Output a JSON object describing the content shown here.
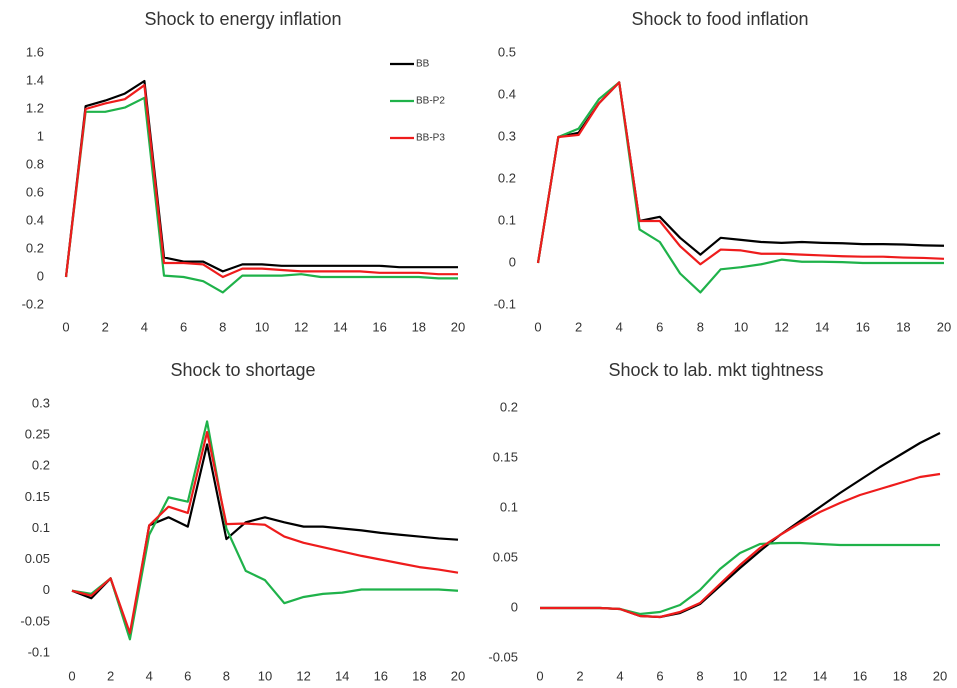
{
  "chart_data": [
    {
      "type": "line",
      "title": "Shock to energy inflation",
      "legend": "upper right",
      "x": [
        0,
        1,
        2,
        3,
        4,
        5,
        6,
        7,
        8,
        9,
        10,
        11,
        12,
        13,
        14,
        15,
        16,
        17,
        18,
        19,
        20
      ],
      "xlim": [
        0,
        20
      ],
      "xticks": [
        0,
        2,
        4,
        6,
        8,
        10,
        12,
        14,
        16,
        18,
        20
      ],
      "ylim": [
        -0.2,
        1.6
      ],
      "yticks": [
        -0.2,
        0,
        0.2,
        0.4,
        0.6,
        0.8,
        1,
        1.2,
        1.4,
        1.6
      ],
      "series": [
        {
          "name": "BB",
          "color": "#000000",
          "values": [
            0,
            1.22,
            1.26,
            1.31,
            1.4,
            0.14,
            0.11,
            0.11,
            0.04,
            0.09,
            0.09,
            0.08,
            0.08,
            0.08,
            0.08,
            0.08,
            0.08,
            0.07,
            0.07,
            0.07,
            0.07
          ]
        },
        {
          "name": "BB-P2",
          "color": "#1fb24a",
          "values": [
            0,
            1.18,
            1.18,
            1.21,
            1.28,
            0.01,
            0,
            -0.03,
            -0.11,
            0.01,
            0.01,
            0.01,
            0.02,
            0,
            0,
            0,
            0,
            0,
            0,
            -0.01,
            -0.01
          ]
        },
        {
          "name": "BB-P3",
          "color": "#ee1c1c",
          "values": [
            0,
            1.2,
            1.24,
            1.27,
            1.37,
            0.1,
            0.1,
            0.09,
            0,
            0.06,
            0.06,
            0.05,
            0.04,
            0.04,
            0.04,
            0.04,
            0.03,
            0.03,
            0.03,
            0.02,
            0.02
          ]
        }
      ]
    },
    {
      "type": "line",
      "title": "Shock to food inflation",
      "x": [
        0,
        1,
        2,
        3,
        4,
        5,
        6,
        7,
        8,
        9,
        10,
        11,
        12,
        13,
        14,
        15,
        16,
        17,
        18,
        19,
        20
      ],
      "xlim": [
        0,
        20
      ],
      "xticks": [
        0,
        2,
        4,
        6,
        8,
        10,
        12,
        14,
        16,
        18,
        20
      ],
      "ylim": [
        -0.1,
        0.5
      ],
      "yticks": [
        -0.1,
        0,
        0.1,
        0.2,
        0.3,
        0.4,
        0.5
      ],
      "series": [
        {
          "color": "#000000",
          "values": [
            0,
            0.3,
            0.31,
            0.38,
            0.43,
            0.1,
            0.11,
            0.06,
            0.02,
            0.06,
            0.055,
            0.05,
            0.048,
            0.05,
            0.048,
            0.047,
            0.045,
            0.045,
            0.044,
            0.042,
            0.041
          ]
        },
        {
          "color": "#1fb24a",
          "values": [
            0,
            0.3,
            0.32,
            0.39,
            0.43,
            0.08,
            0.05,
            -0.025,
            -0.07,
            -0.015,
            -0.01,
            -0.003,
            0.008,
            0.003,
            0.003,
            0.002,
            0,
            0,
            0,
            0,
            0
          ]
        },
        {
          "color": "#ee1c1c",
          "values": [
            0,
            0.3,
            0.305,
            0.38,
            0.43,
            0.1,
            0.1,
            0.04,
            -0.003,
            0.032,
            0.03,
            0.022,
            0.022,
            0.02,
            0.018,
            0.016,
            0.015,
            0.015,
            0.013,
            0.012,
            0.01
          ]
        }
      ]
    },
    {
      "type": "line",
      "title": "Shock to shortage",
      "x": [
        0,
        1,
        2,
        3,
        4,
        5,
        6,
        7,
        8,
        9,
        10,
        11,
        12,
        13,
        14,
        15,
        16,
        17,
        18,
        19,
        20
      ],
      "xlim": [
        0,
        20
      ],
      "xticks": [
        0,
        2,
        4,
        6,
        8,
        10,
        12,
        14,
        16,
        18,
        20
      ],
      "ylim": [
        -0.1,
        0.3
      ],
      "yticks": [
        -0.1,
        -0.05,
        0,
        0.05,
        0.1,
        0.15,
        0.2,
        0.25,
        0.3
      ],
      "series": [
        {
          "color": "#000000",
          "values": [
            0,
            -0.012,
            0.02,
            -0.075,
            0.105,
            0.118,
            0.103,
            0.235,
            0.083,
            0.11,
            0.118,
            0.11,
            0.103,
            0.103,
            0.1,
            0.097,
            0.093,
            0.09,
            0.087,
            0.084,
            0.082
          ]
        },
        {
          "color": "#1fb24a",
          "values": [
            0,
            -0.005,
            0.02,
            -0.078,
            0.09,
            0.15,
            0.143,
            0.272,
            0.1,
            0.032,
            0.017,
            -0.02,
            -0.01,
            -0.005,
            -0.003,
            0.002,
            0.002,
            0.002,
            0.002,
            0.002,
            0
          ]
        },
        {
          "color": "#ee1c1c",
          "values": [
            0,
            -0.008,
            0.02,
            -0.068,
            0.105,
            0.135,
            0.125,
            0.255,
            0.107,
            0.108,
            0.106,
            0.087,
            0.077,
            0.07,
            0.063,
            0.056,
            0.05,
            0.044,
            0.038,
            0.034,
            0.029
          ]
        }
      ]
    },
    {
      "type": "line",
      "title": "Shock to lab. mkt tightness",
      "x": [
        0,
        1,
        2,
        3,
        4,
        5,
        6,
        7,
        8,
        9,
        10,
        11,
        12,
        13,
        14,
        15,
        16,
        17,
        18,
        19,
        20
      ],
      "xlim": [
        0,
        20
      ],
      "xticks": [
        0,
        2,
        4,
        6,
        8,
        10,
        12,
        14,
        16,
        18,
        20
      ],
      "ylim": [
        -0.05,
        0.2
      ],
      "yticks": [
        -0.05,
        0,
        0.05,
        0.1,
        0.15,
        0.2
      ],
      "series": [
        {
          "color": "#000000",
          "values": [
            0,
            0,
            0,
            0,
            -0.001,
            -0.008,
            -0.009,
            -0.005,
            0.004,
            0.022,
            0.04,
            0.057,
            0.073,
            0.087,
            0.101,
            0.115,
            0.128,
            0.141,
            0.153,
            0.165,
            0.175
          ]
        },
        {
          "color": "#1fb24a",
          "values": [
            0,
            0,
            0,
            0,
            -0.001,
            -0.006,
            -0.004,
            0.003,
            0.018,
            0.039,
            0.055,
            0.064,
            0.065,
            0.065,
            0.064,
            0.063,
            0.063,
            0.063,
            0.063,
            0.063,
            0.063
          ]
        },
        {
          "color": "#ee1c1c",
          "values": [
            0,
            0,
            0,
            0,
            -0.001,
            -0.008,
            -0.009,
            -0.004,
            0.005,
            0.024,
            0.043,
            0.06,
            0.073,
            0.085,
            0.096,
            0.105,
            0.113,
            0.119,
            0.125,
            0.131,
            0.134
          ]
        }
      ]
    }
  ]
}
